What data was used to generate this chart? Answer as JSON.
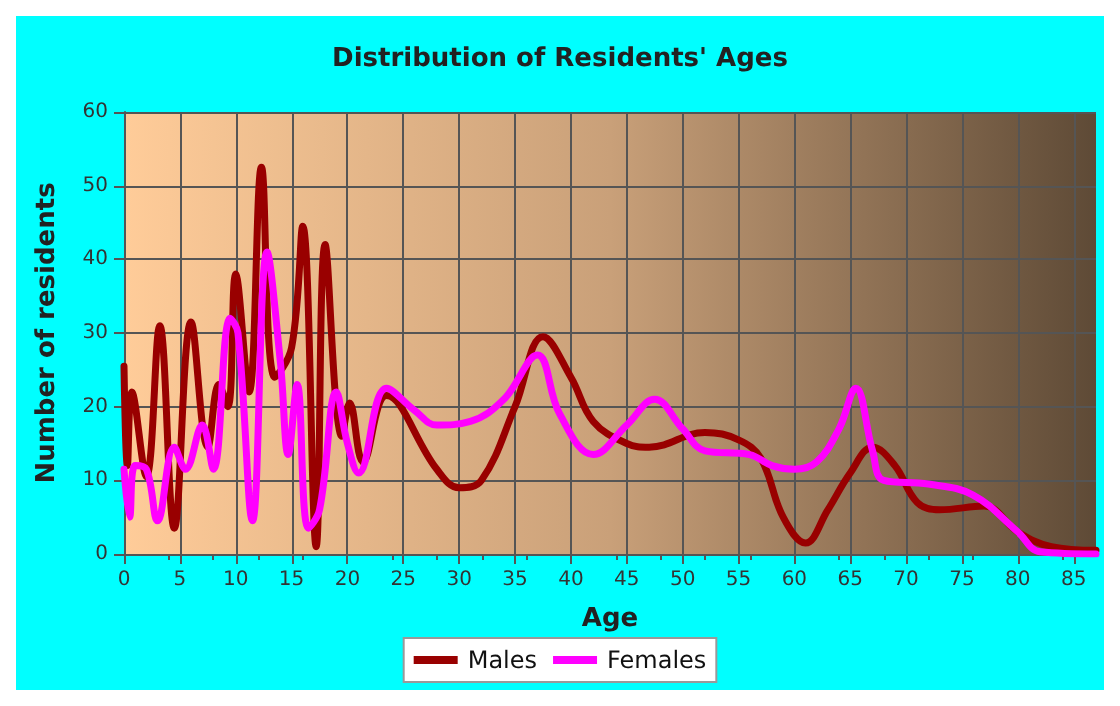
{
  "chart_data": {
    "type": "line",
    "title": "Distribution of Residents' Ages",
    "xlabel": "Age",
    "ylabel": "Number of residents",
    "xlim": [
      0,
      87
    ],
    "xticks": [
      0,
      5,
      10,
      15,
      20,
      25,
      30,
      35,
      40,
      45,
      50,
      55,
      60,
      65,
      70,
      75,
      80,
      85
    ],
    "ylim": [
      0,
      60
    ],
    "yticks": [
      0,
      10,
      20,
      30,
      40,
      50,
      60
    ],
    "grid": true,
    "legend": "bottom",
    "marker": "none",
    "line_style": "solid",
    "series": [
      {
        "name": "Males",
        "color": "#990000",
        "x": [
          0,
          0.3,
          0.7,
          2,
          3.2,
          4.5,
          6,
          7.5,
          8.5,
          9.3,
          10,
          11.2,
          12.3,
          13.5,
          15,
          16,
          17.2,
          18,
          19.5,
          20.2,
          21.4,
          23.5,
          28,
          30,
          32,
          35,
          37.5,
          40,
          42,
          45,
          47,
          52,
          55,
          57,
          59,
          61,
          63,
          65,
          67,
          69,
          71,
          73,
          77,
          80,
          83,
          87
        ],
        "values": [
          25.5,
          12,
          22,
          10.5,
          31,
          3.5,
          31.5,
          14.5,
          23,
          20,
          38,
          22,
          52.5,
          24,
          28,
          44.5,
          1,
          42,
          16,
          20.5,
          12.5,
          21.5,
          11.5,
          9,
          10,
          20,
          29.5,
          24,
          18,
          15,
          14.5,
          16.5,
          15.5,
          13,
          5,
          1.5,
          6,
          11,
          14.5,
          12,
          7,
          6,
          6.5,
          3,
          1,
          0.5
        ]
      },
      {
        "name": "Females",
        "color": "#ff00ff",
        "x": [
          0,
          0.5,
          1,
          2,
          3,
          4.5,
          5.5,
          7,
          8,
          9.5,
          10.2,
          11.5,
          12.8,
          14,
          14.7,
          15.5,
          16.5,
          17.5,
          19,
          20,
          21,
          23.5,
          26,
          28,
          31,
          34,
          37,
          39,
          42,
          45,
          47.5,
          50,
          52,
          56,
          58,
          60,
          62,
          64,
          65.5,
          67,
          68,
          72,
          76,
          80,
          82,
          87
        ],
        "values": [
          11.5,
          5,
          12,
          11.5,
          4.5,
          14.5,
          11.5,
          17.5,
          11.5,
          32,
          30,
          4.5,
          41,
          26,
          13.5,
          23,
          3.5,
          6,
          22,
          15,
          11,
          22.5,
          19.5,
          17.5,
          18,
          21,
          27,
          19,
          13.5,
          17.5,
          21,
          17,
          14,
          13.5,
          12,
          11.5,
          12.5,
          17,
          22.5,
          14,
          10,
          9.5,
          8,
          3,
          0.3,
          0
        ]
      }
    ]
  }
}
